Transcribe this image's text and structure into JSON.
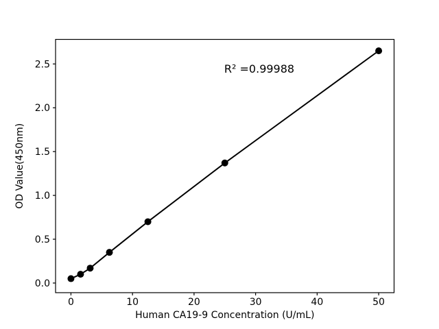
{
  "figure": {
    "background": "#ffffff",
    "foreground": "#000000"
  },
  "chart_data": {
    "type": "scatter",
    "title": "",
    "xlabel": "Human CA19-9 Concentration (U/mL)",
    "ylabel": "OD Value(450nm)",
    "x": [
      0,
      1.56,
      3.125,
      6.25,
      12.5,
      25,
      50
    ],
    "y": [
      0.05,
      0.1,
      0.17,
      0.35,
      0.7,
      1.37,
      2.65
    ],
    "fit_line": true,
    "annotation": {
      "text": "R² =0.99988"
    },
    "xlim": [
      -2.5,
      52.5
    ],
    "ylim": [
      -0.11,
      2.78
    ],
    "xticks": [
      0,
      10,
      20,
      30,
      40,
      50
    ],
    "xtick_labels": [
      "0",
      "10",
      "20",
      "30",
      "40",
      "50"
    ],
    "yticks": [
      0.0,
      0.5,
      1.0,
      1.5,
      2.0,
      2.5
    ],
    "ytick_labels": [
      "0.0",
      "0.5",
      "1.0",
      "1.5",
      "2.0",
      "2.5"
    ],
    "grid": false,
    "legend_position": "none",
    "marker_color": "#000000",
    "line_color": "#000000",
    "marker_size": 5
  }
}
